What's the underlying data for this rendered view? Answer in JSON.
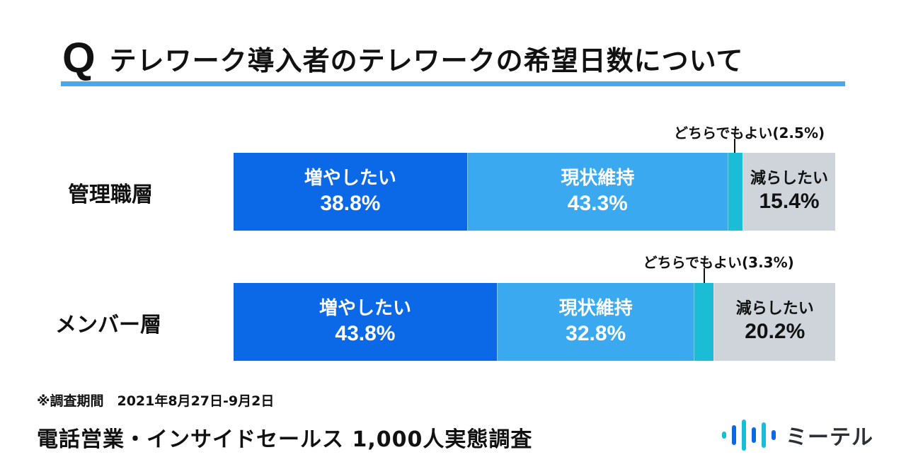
{
  "title": {
    "q_letter": "Q",
    "text": "テレワーク導入者のテレワークの希望日数について",
    "underline_color": "#4aa8e8"
  },
  "chart_data": {
    "type": "bar",
    "orientation": "horizontal-stacked-100",
    "categories": [
      "管理職層",
      "メンバー層"
    ],
    "series": [
      {
        "name": "増やしたい",
        "values": [
          38.8,
          43.8
        ],
        "color": "#0b68e6"
      },
      {
        "name": "現状維持",
        "values": [
          43.3,
          32.8
        ],
        "color": "#3aa9ef"
      },
      {
        "name": "どちらでもよい",
        "values": [
          2.5,
          3.3
        ],
        "color": "#1bbcd6"
      },
      {
        "name": "減らしたい",
        "values": [
          15.4,
          20.2
        ],
        "color": "#cfd3da"
      }
    ],
    "value_labels": [
      [
        "38.8%",
        "43.3%",
        "",
        "15.4%"
      ],
      [
        "43.8%",
        "32.8%",
        "",
        "20.2%"
      ]
    ],
    "callouts": [
      "どちらでもよい(2.5%)",
      "どちらでもよい(3.3%)"
    ],
    "xlim": [
      0,
      100
    ],
    "grid": false,
    "legend": "none"
  },
  "footer": {
    "period": "※調査期間　2021年8月27日-9月2日",
    "survey_title": "電話営業・インサイドセールス 1,000人実態調査"
  },
  "logo": {
    "name": "ミーテル",
    "icon": "audio-waveform-icon",
    "colors": [
      "#1bbcd6",
      "#0b68e6"
    ]
  }
}
